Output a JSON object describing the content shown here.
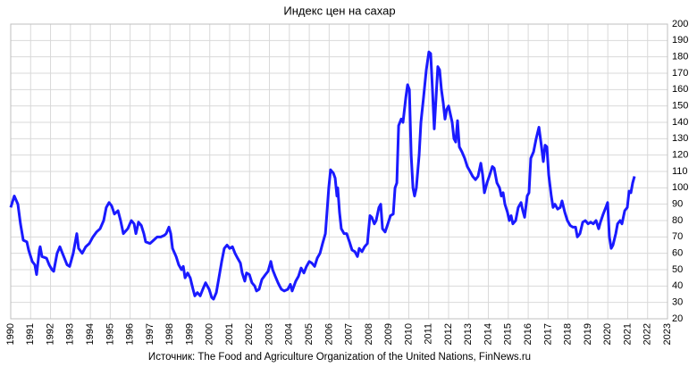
{
  "chart_data": {
    "type": "line",
    "title": "Индекс цен на сахар",
    "source": "Источник: The Food and Agriculture Organization of the United Nations, FinNews.ru",
    "color": "#1a1aff",
    "grid": true,
    "xlim": [
      1990,
      2023
    ],
    "ylim": [
      20,
      200
    ],
    "xticks": [
      1990,
      1991,
      1992,
      1993,
      1994,
      1995,
      1996,
      1997,
      1998,
      1999,
      2000,
      2001,
      2002,
      2003,
      2004,
      2005,
      2006,
      2007,
      2008,
      2009,
      2010,
      2011,
      2012,
      2013,
      2014,
      2015,
      2016,
      2017,
      2018,
      2019,
      2020,
      2021,
      2022,
      2023
    ],
    "yticks": [
      20,
      30,
      40,
      50,
      60,
      70,
      80,
      90,
      100,
      110,
      120,
      130,
      140,
      150,
      160,
      170,
      180,
      190,
      200
    ],
    "x": [
      1990.0,
      1990.18,
      1990.36,
      1990.49,
      1990.63,
      1990.81,
      1990.9,
      1991.08,
      1991.21,
      1991.3,
      1991.44,
      1991.48,
      1991.57,
      1991.8,
      1991.93,
      1992.07,
      1992.16,
      1992.33,
      1992.47,
      1992.6,
      1992.83,
      1992.96,
      1993.14,
      1993.32,
      1993.41,
      1993.59,
      1993.77,
      1993.95,
      1994.13,
      1994.31,
      1994.49,
      1994.67,
      1994.8,
      1994.94,
      1995.07,
      1995.21,
      1995.39,
      1995.52,
      1995.66,
      1995.88,
      1996.06,
      1996.2,
      1996.29,
      1996.42,
      1996.56,
      1996.69,
      1996.78,
      1997.0,
      1997.18,
      1997.36,
      1997.54,
      1997.72,
      1997.81,
      1997.95,
      1998.04,
      1998.13,
      1998.31,
      1998.44,
      1998.58,
      1998.67,
      1998.76,
      1998.89,
      1999.02,
      1999.16,
      1999.25,
      1999.38,
      1999.52,
      1999.65,
      1999.79,
      1999.97,
      2000.1,
      2000.19,
      2000.33,
      2000.46,
      2000.6,
      2000.73,
      2000.87,
      2001.0,
      2001.14,
      2001.27,
      2001.4,
      2001.54,
      2001.63,
      2001.76,
      2001.85,
      2001.99,
      2002.12,
      2002.26,
      2002.35,
      2002.48,
      2002.62,
      2002.8,
      2002.93,
      2003.07,
      2003.16,
      2003.29,
      2003.43,
      2003.51,
      2003.6,
      2003.74,
      2003.92,
      2004.05,
      2004.14,
      2004.32,
      2004.46,
      2004.59,
      2004.73,
      2004.86,
      2005.0,
      2005.13,
      2005.27,
      2005.4,
      2005.54,
      2005.67,
      2005.81,
      2005.89,
      2005.98,
      2006.07,
      2006.21,
      2006.3,
      2006.39,
      2006.43,
      2006.52,
      2006.61,
      2006.75,
      2006.88,
      2007.02,
      2007.15,
      2007.29,
      2007.42,
      2007.51,
      2007.65,
      2007.78,
      2007.92,
      2008.05,
      2008.14,
      2008.27,
      2008.36,
      2008.5,
      2008.59,
      2008.68,
      2008.81,
      2008.95,
      2009.08,
      2009.22,
      2009.31,
      2009.4,
      2009.49,
      2009.62,
      2009.71,
      2009.85,
      2009.94,
      2010.03,
      2010.12,
      2010.21,
      2010.29,
      2010.38,
      2010.52,
      2010.61,
      2010.74,
      2010.88,
      2011.01,
      2011.1,
      2011.19,
      2011.28,
      2011.37,
      2011.46,
      2011.55,
      2011.64,
      2011.73,
      2011.82,
      2011.91,
      2012.0,
      2012.09,
      2012.18,
      2012.27,
      2012.36,
      2012.45,
      2012.54,
      2012.67,
      2012.81,
      2012.94,
      2013.08,
      2013.21,
      2013.35,
      2013.48,
      2013.62,
      2013.71,
      2013.8,
      2013.93,
      2014.07,
      2014.2,
      2014.29,
      2014.43,
      2014.56,
      2014.65,
      2014.74,
      2014.83,
      2014.96,
      2015.05,
      2015.14,
      2015.23,
      2015.37,
      2015.5,
      2015.64,
      2015.73,
      2015.82,
      2015.95,
      2016.04,
      2016.13,
      2016.27,
      2016.4,
      2016.54,
      2016.67,
      2016.76,
      2016.85,
      2016.94,
      2017.03,
      2017.16,
      2017.25,
      2017.34,
      2017.48,
      2017.61,
      2017.7,
      2017.84,
      2017.97,
      2018.11,
      2018.24,
      2018.38,
      2018.47,
      2018.6,
      2018.74,
      2018.87,
      2019.01,
      2019.14,
      2019.27,
      2019.41,
      2019.54,
      2019.63,
      2019.77,
      2019.9,
      2019.99,
      2020.08,
      2020.17,
      2020.26,
      2020.4,
      2020.49,
      2020.62,
      2020.71,
      2020.85,
      2020.98,
      2021.07,
      2021.16,
      2021.25,
      2021.34
    ],
    "values": [
      88,
      95,
      90,
      78,
      68,
      67,
      62,
      55,
      53,
      47,
      62,
      64,
      58,
      57,
      53,
      50,
      49,
      60,
      64,
      60,
      53,
      52,
      60,
      72,
      63,
      60,
      64,
      66,
      70,
      73,
      75,
      80,
      88,
      91,
      89,
      84,
      86,
      80,
      72,
      75,
      80,
      78,
      72,
      79,
      77,
      72,
      67,
      66,
      68,
      70,
      70,
      71,
      72,
      76,
      72,
      63,
      58,
      53,
      50,
      52,
      45,
      48,
      45,
      38,
      34,
      36,
      34,
      38,
      42,
      38,
      33,
      32,
      36,
      45,
      55,
      63,
      65,
      63,
      64,
      60,
      57,
      54,
      48,
      43,
      48,
      47,
      42,
      40,
      37,
      38,
      44,
      47,
      49,
      55,
      50,
      46,
      42,
      40,
      38,
      37,
      38,
      41,
      37,
      43,
      46,
      51,
      48,
      52,
      55,
      54,
      52,
      57,
      60,
      66,
      72,
      85,
      100,
      111,
      109,
      106,
      95,
      100,
      85,
      75,
      72,
      72,
      67,
      62,
      61,
      58,
      63,
      61,
      64,
      66,
      83,
      82,
      78,
      80,
      88,
      90,
      75,
      73,
      78,
      83,
      84,
      100,
      103,
      138,
      142,
      140,
      155,
      163,
      160,
      120,
      100,
      95,
      100,
      120,
      140,
      155,
      172,
      183,
      182,
      160,
      136,
      155,
      174,
      172,
      160,
      152,
      142,
      148,
      150,
      145,
      140,
      130,
      128,
      141,
      125,
      122,
      118,
      113,
      110,
      107,
      105,
      107,
      115,
      108,
      97,
      103,
      108,
      113,
      112,
      103,
      100,
      95,
      97,
      90,
      85,
      80,
      83,
      78,
      80,
      88,
      91,
      86,
      82,
      95,
      97,
      118,
      122,
      130,
      137,
      125,
      116,
      126,
      125,
      108,
      95,
      88,
      90,
      87,
      88,
      92,
      85,
      80,
      77,
      76,
      76,
      70,
      72,
      79,
      80,
      78,
      79,
      78,
      80,
      75,
      79,
      84,
      88,
      91,
      70,
      63,
      65,
      72,
      78,
      80,
      78,
      86,
      88,
      98,
      97,
      103,
      107
    ]
  }
}
